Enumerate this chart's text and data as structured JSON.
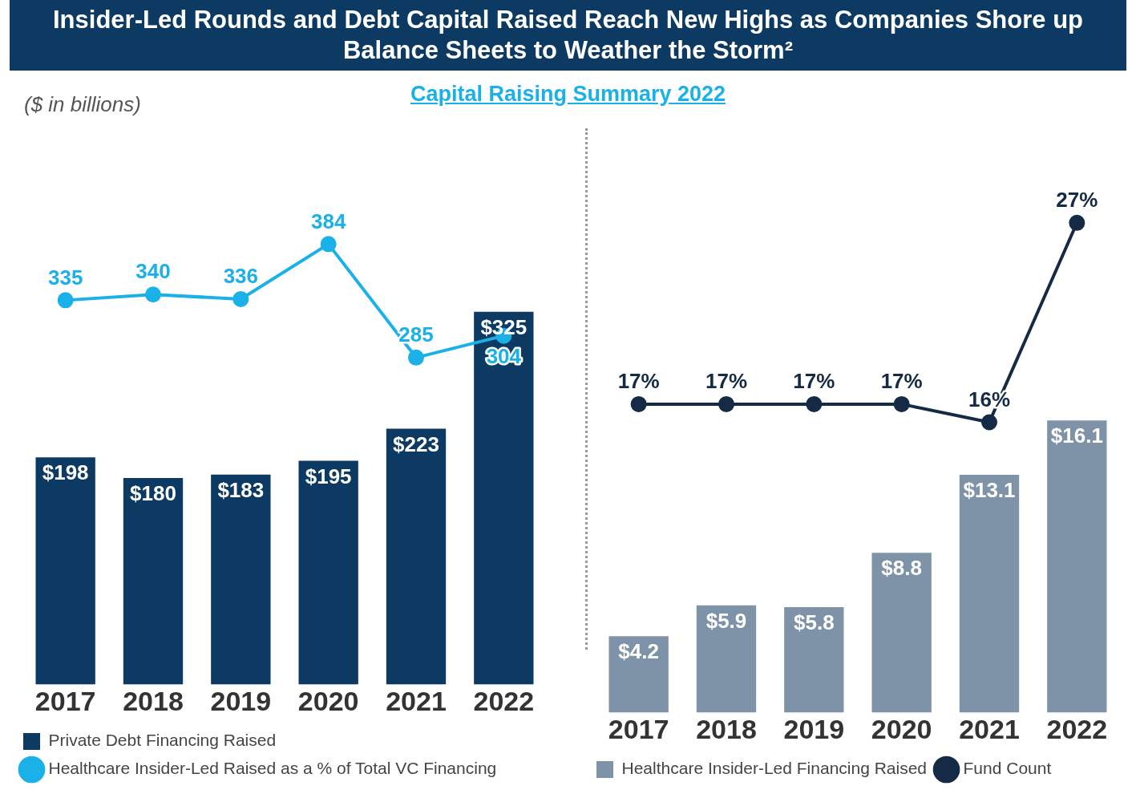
{
  "chart_data": [
    {
      "type": "bar",
      "title": "Insider-Led Rounds and Debt Capital Raised Reach New Highs as Companies Shore up Balance Sheets to Weather the Storm²",
      "subtitle": "Capital Raising Summary 2022",
      "annotations": [
        "($ in billions)"
      ],
      "categories": [
        "2017",
        "2018",
        "2019",
        "2020",
        "2021",
        "2022"
      ],
      "series": [
        {
          "name": "Private Debt Financing Raised",
          "color": "#0d3a63",
          "values": [
            198,
            180,
            183,
            195,
            223,
            325
          ],
          "value_labels": [
            "$198",
            "$180",
            "$183",
            "$195",
            "$223",
            "$325"
          ]
        },
        {
          "name": "Healthcare Insider-Led Raised as a % of Total VC Financing",
          "type": "line",
          "color": "#1ab0e8",
          "values": [
            335,
            340,
            336,
            384,
            285,
            304
          ],
          "value_labels": [
            "335",
            "340",
            "336",
            "384",
            "285",
            "304"
          ]
        }
      ],
      "legend": "bottom left",
      "grid": false,
      "tick_labels": "x",
      "marker": "circle"
    },
    {
      "type": "bar",
      "categories": [
        "2017",
        "2018",
        "2019",
        "2020",
        "2021",
        "2022"
      ],
      "series": [
        {
          "name": "Healthcare Insider-Led Financing Raised",
          "color": "#7f93a8",
          "values": [
            4.2,
            5.9,
            5.8,
            8.8,
            13.1,
            16.1
          ],
          "value_labels": [
            "$4.2",
            "$5.9",
            "$5.8",
            "$8.8",
            "$13.1",
            "$16.1"
          ]
        },
        {
          "name": "Fund Count",
          "type": "line",
          "color": "#142a45",
          "values": [
            17,
            17,
            17,
            17,
            16,
            27
          ],
          "value_labels": [
            "17%",
            "17%",
            "17%",
            "17%",
            "16%",
            "27%"
          ]
        }
      ],
      "legend": "bottom left",
      "grid": false,
      "tick_labels": "x",
      "marker": "circle"
    }
  ]
}
